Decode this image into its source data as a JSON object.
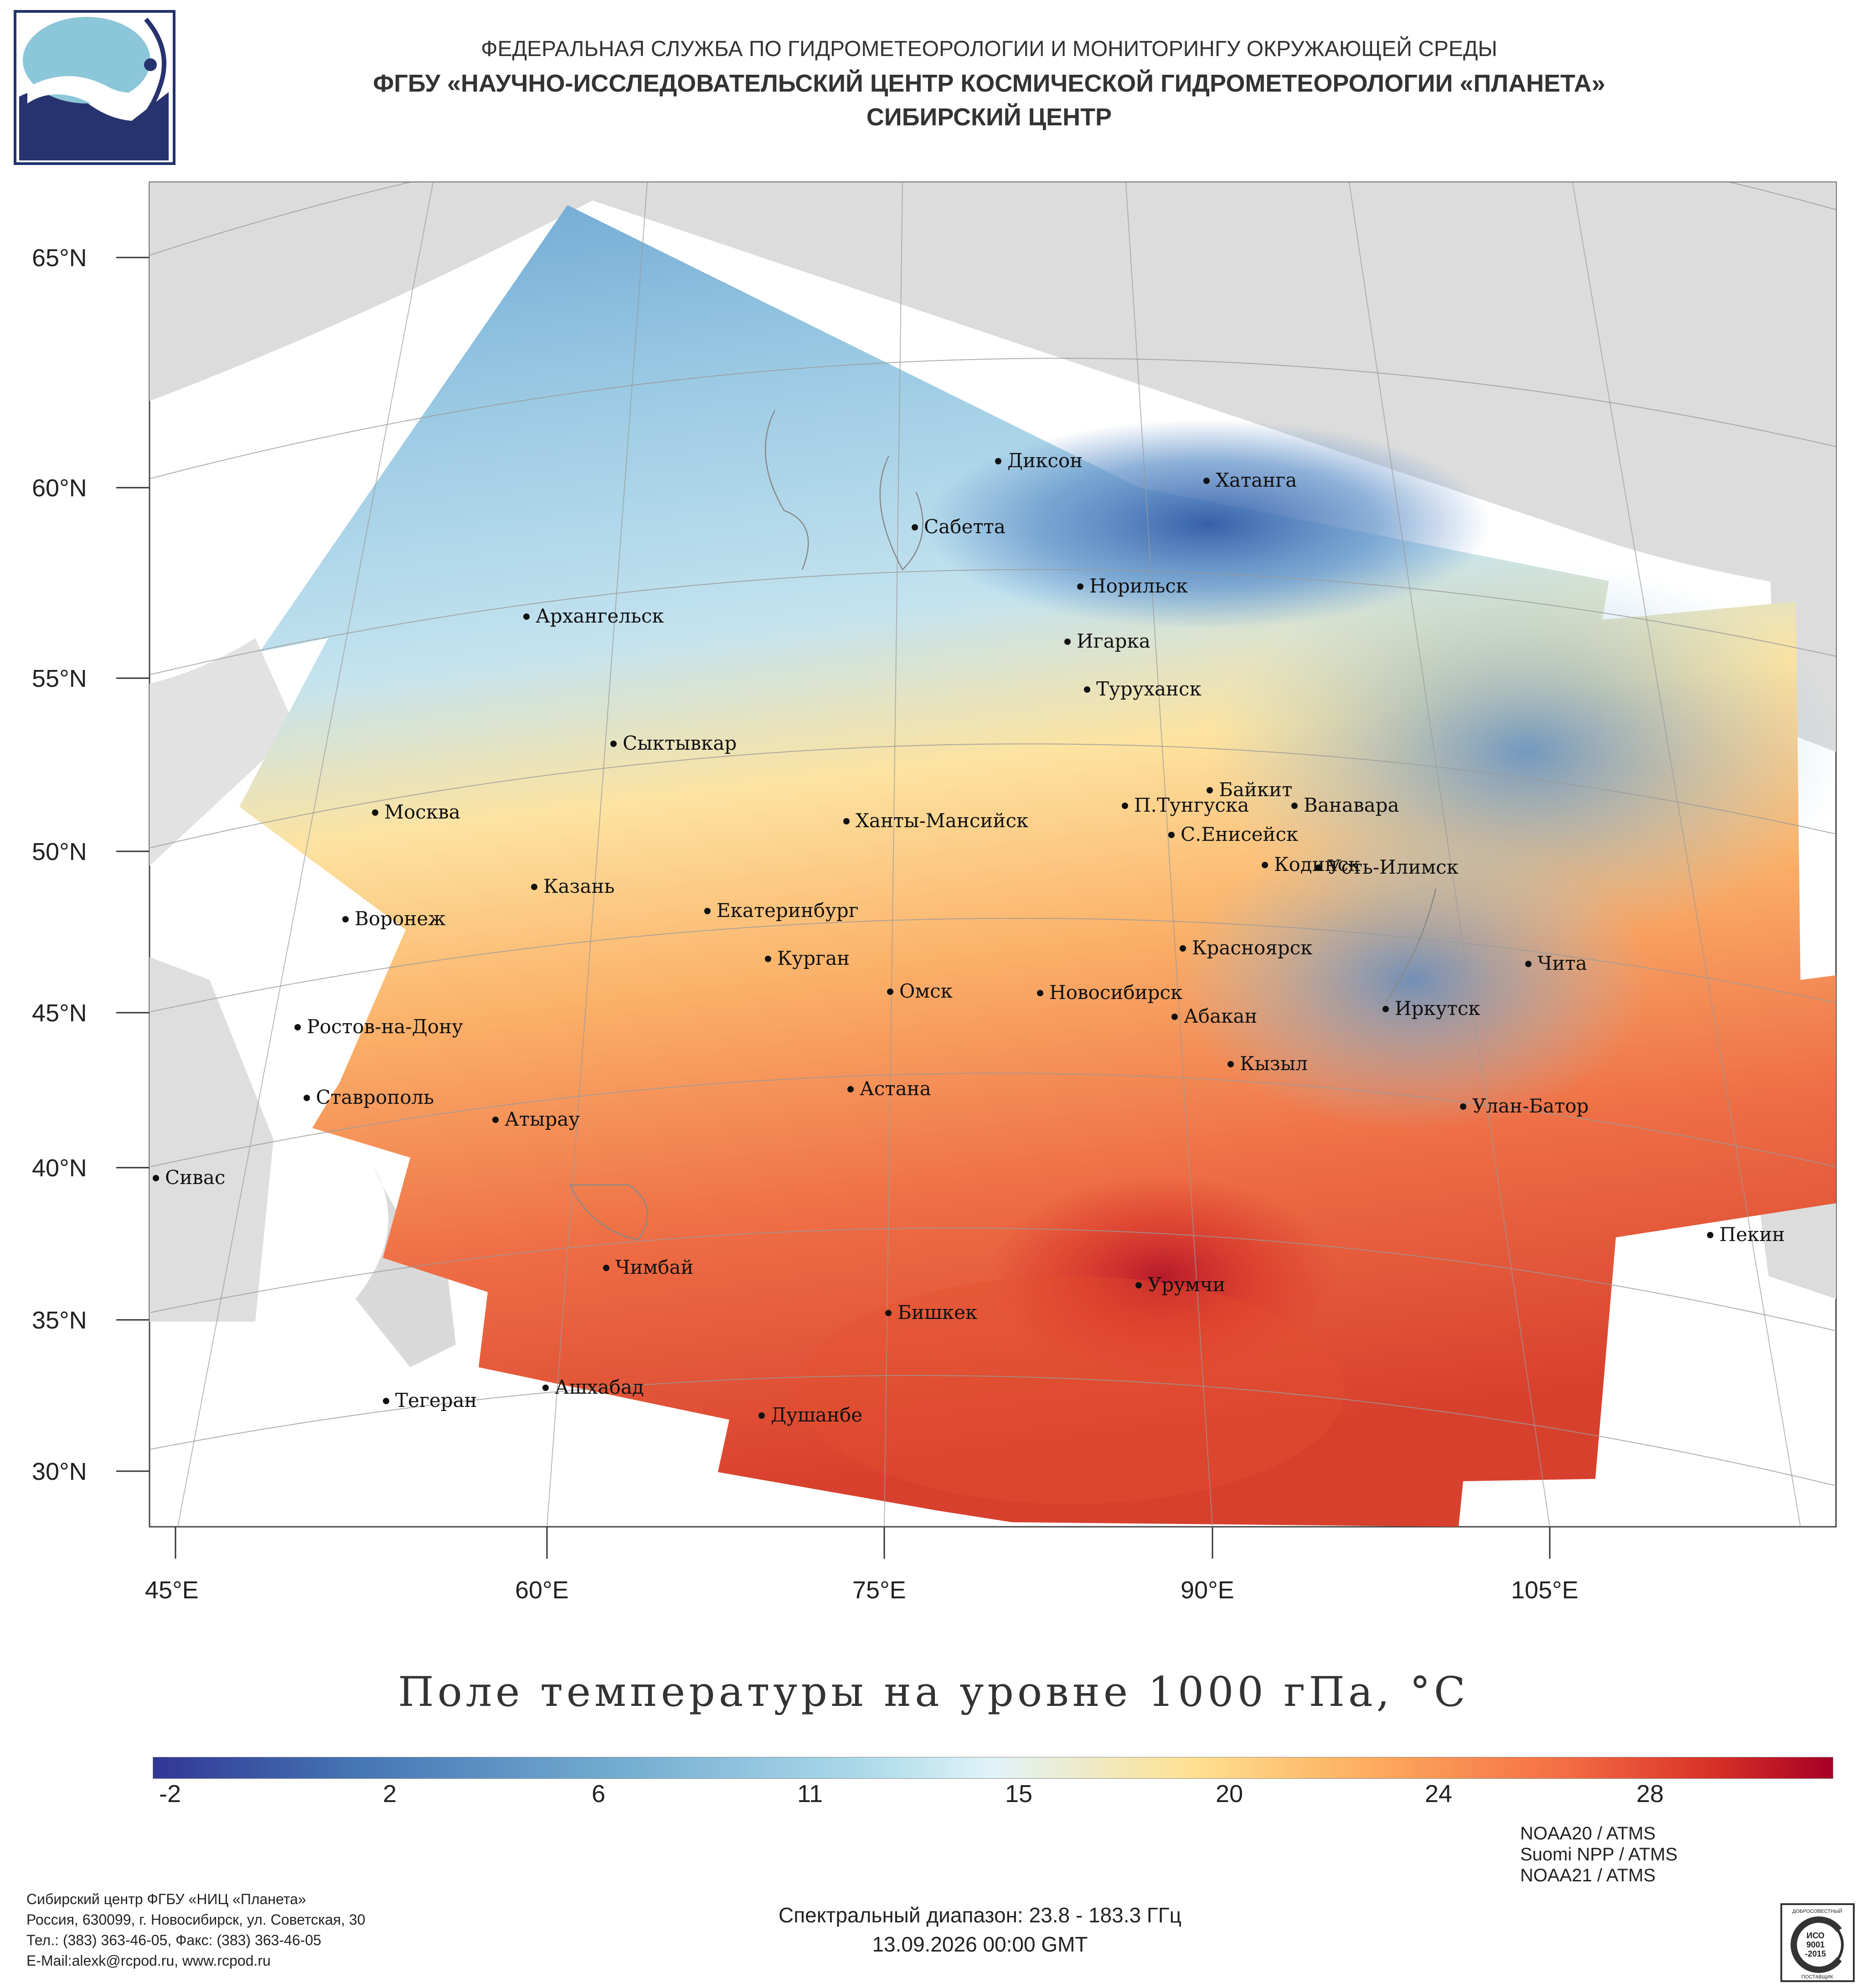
{
  "header": {
    "line1": "ФЕДЕРАЛЬНАЯ СЛУЖБА ПО ГИДРОМЕТЕОРОЛОГИИ И МОНИТОРИНГУ ОКРУЖАЮЩЕЙ СРЕДЫ",
    "line2": "ФГБУ «НАУЧНО-ИССЛЕДОВАТЕЛЬСКИЙ ЦЕНТР КОСМИЧЕСКОЙ ГИДРОМЕТЕОРОЛОГИИ «ПЛАНЕТА»",
    "line3": "СИБИРСКИЙ ЦЕНТР"
  },
  "map": {
    "lat_labels": [
      "65°N",
      "60°N",
      "55°N",
      "50°N",
      "45°N",
      "40°N",
      "35°N",
      "30°N"
    ],
    "lon_labels": [
      "45°E",
      "60°E",
      "75°E",
      "90°E",
      "105°E"
    ],
    "cities": [
      "Диксон",
      "Хатанга",
      "Сабетта",
      "Норильск",
      "Архангельск",
      "Игарка",
      "Туруханск",
      "Сыктывкар",
      "Байкит",
      "П.Тунгуска",
      "Ванавара",
      "Москва",
      "Ханты-Мансийск",
      "С.Енисейск",
      "Кодинск",
      "Усть-Илимск",
      "Казань",
      "Екатеринбург",
      "Воронеж",
      "Красноярск",
      "Курган",
      "Чита",
      "Омск",
      "Новосибирск",
      "Иркутск",
      "Ростов-на-Дону",
      "Абакан",
      "Кызыл",
      "Астана",
      "Ставрополь",
      "Улан-Батор",
      "Атырау",
      "Сивас",
      "Пекин",
      "Чимбай",
      "Урумчи",
      "Бишкек",
      "Ашхабад",
      "Тегеран",
      "Душанбе"
    ]
  },
  "title": "Поле температуры на уровне 1000 гПа, °C",
  "colorbar": {
    "ticks": [
      "-2",
      "2",
      "6",
      "11",
      "15",
      "20",
      "24",
      "28"
    ],
    "colors": [
      "#313695",
      "#4575b4",
      "#74add1",
      "#abd9e9",
      "#e0f3f8",
      "#fee090",
      "#fdae61",
      "#f46d43",
      "#d73027",
      "#a50026"
    ]
  },
  "footer": {
    "org1": "Сибирский центр ФГБУ «НИЦ «Планета»",
    "org2": "Россия, 630099, г. Новосибирск, ул. Советская, 30",
    "org3": "Тел.: (383) 363-46-05, Факс: (383) 363-46-05",
    "org4": "E-Mail:alexk@rcpod.ru, www.rcpod.ru",
    "spectral": "Спектральный диапазон: 23.8 - 183.3 ГГц",
    "datetime": "13.09.2026 00:00 GMT",
    "sat1": "NOAA20 / ATMS",
    "sat2": "Suomi NPP / ATMS",
    "sat3": "NOAA21 / ATMS",
    "iso_top": "ДОБРОСОВЕСТНЫЙ",
    "iso_mid1": "ИСО",
    "iso_mid2": "9001",
    "iso_mid3": "-2015",
    "iso_bot": "ПОСТАВЩИК"
  }
}
